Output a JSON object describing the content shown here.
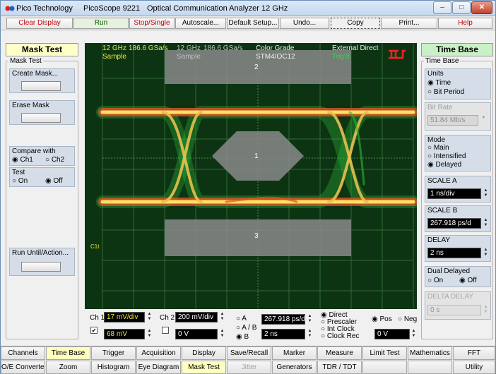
{
  "title": {
    "company": "Pico Technology",
    "app": "PicoScope 9221",
    "subtitle": "Optical Communication Analyzer 12 GHz"
  },
  "window_controls": {
    "minimize": "–",
    "maximize": "□",
    "close": "✕"
  },
  "toolbar": [
    "Clear Display",
    "Run",
    "Stop/Single",
    "Autoscale...",
    "Default Setup...",
    "Undo...",
    "Copy",
    "Print...",
    "Help"
  ],
  "left_panel": {
    "title": "Mask Test",
    "group": "Mask Test",
    "create_mask": "Create Mask...",
    "erase_mask": "Erase Mask",
    "compare_with": "Compare with",
    "ch1": "Ch1",
    "ch2": "Ch2",
    "test": "Test",
    "on": "On",
    "off": "Off",
    "run_until": "Run Until/Action..."
  },
  "scope": {
    "h1a": "12 GHz",
    "h1b": "186.6 GSa/s",
    "h1c": "Sample",
    "h2a": "12 GHz",
    "h2b": "186.6 GSa/s",
    "h2c": "Sample",
    "h3a": "Color Grade",
    "h3b": "STM4/OC12",
    "h4a": "External Direct",
    "h4b": "Trig'd",
    "mask_labels": [
      "2",
      "1",
      "3"
    ],
    "marker_ch1": "C1t"
  },
  "controls": {
    "ch1_label": "Ch 1",
    "ch1_scale": "17 mV/div",
    "ch1_offset": "68 mV",
    "ch2_label": "Ch 2",
    "ch2_scale": "200 mV/div",
    "ch2_offset": "0 V",
    "radio_a": "A",
    "radio_ab": "A / B",
    "radio_b": "B",
    "timebase_value": "267.918 ps/d",
    "delay_value": "2 ns",
    "trig_direct": "Direct",
    "trig_prescaler": "Prescaler",
    "trig_int": "Int Clock",
    "trig_rec": "Clock Rec",
    "pos": "Pos",
    "neg": "Neg",
    "level": "0 V"
  },
  "right_panel": {
    "title": "Time Base",
    "group": "Time Base",
    "units": "Units",
    "time": "Time",
    "bit_period": "Bit Period",
    "bit_rate": "Bit Rate",
    "bit_rate_value": "51.84 Mb/s",
    "mode": "Mode",
    "main": "Main",
    "intensified": "Intensified",
    "delayed": "Delayed",
    "scale_a": "SCALE A",
    "scale_a_value": "1 ns/div",
    "scale_b": "SCALE B",
    "scale_b_value": "267.918 ps/d",
    "delay": "DELAY",
    "delay_value": "2 ns",
    "dual_delayed": "Dual Delayed",
    "on": "On",
    "off": "Off",
    "delta_delay": "DELTA DELAY",
    "delta_value": "0 s"
  },
  "tabs_row1": [
    "Channels",
    "Time Base",
    "Trigger",
    "Acquisition",
    "Display",
    "Save/Recall",
    "Marker",
    "Measure",
    "Limit Test",
    "Mathematics",
    "FFT"
  ],
  "tabs_row2": [
    "O/E Converter",
    "Zoom",
    "Histogram",
    "Eye Diagram",
    "Mask Test",
    "Jitter",
    "Generators",
    "TDR / TDT",
    "",
    "",
    "Utility"
  ],
  "colors": {
    "scope_bg": "#0d3412",
    "trace_hot": "#ffd84a",
    "trace_green": "#2fb53a",
    "mask": "#8a8a8a",
    "header_text": "#e8e840"
  }
}
